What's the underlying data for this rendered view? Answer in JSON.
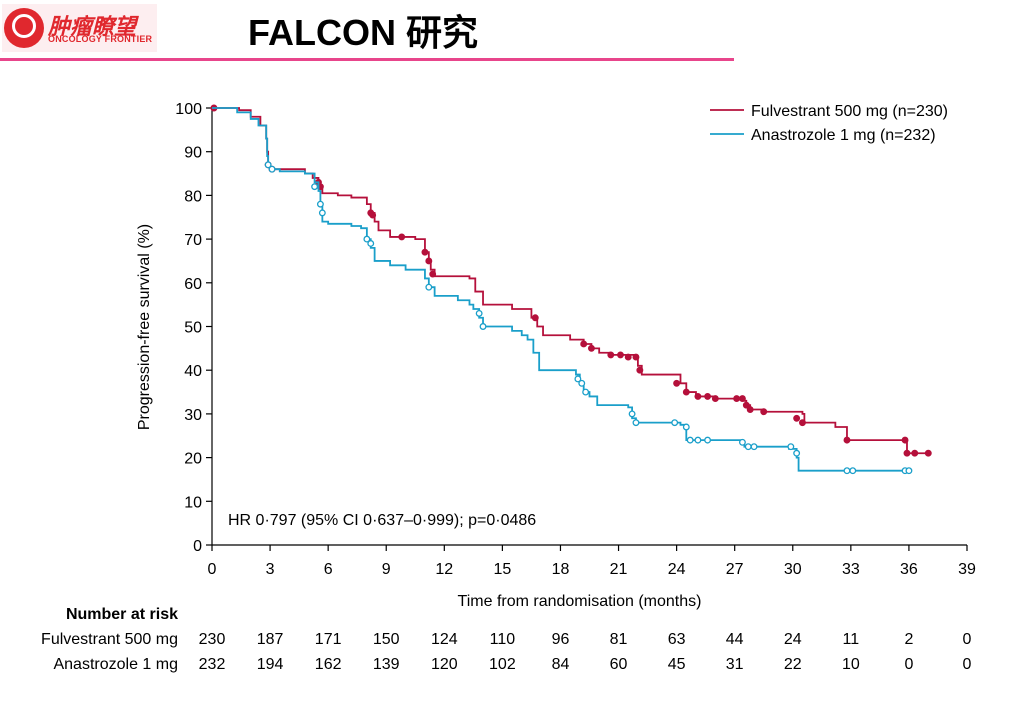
{
  "header": {
    "title": "FALCON 研究",
    "logo_cn": "肿瘤瞭望",
    "logo_en": "ONCOLOGY FRONTIER"
  },
  "colors": {
    "fulvestrant": "#b5103b",
    "anastrozole": "#1a9fca",
    "accent": "#e8458b"
  },
  "chart_data": {
    "type": "line",
    "xlabel": "Time from randomisation (months)",
    "ylabel": "Progression-free survival (%)",
    "xlim": [
      0,
      39
    ],
    "ylim": [
      0,
      100
    ],
    "xticks": [
      0,
      3,
      6,
      9,
      12,
      15,
      18,
      21,
      24,
      27,
      30,
      33,
      36,
      39
    ],
    "yticks": [
      0,
      10,
      20,
      30,
      40,
      50,
      60,
      70,
      80,
      90,
      100
    ],
    "grid": false,
    "legend_position": "top-right",
    "annotation": "HR 0·797 (95% CI 0·637–0·999); p=0·0486",
    "series": [
      {
        "name": "Fulvestrant 500 mg (n=230)",
        "color": "#b5103b",
        "step_points": [
          [
            0,
            100
          ],
          [
            1.4,
            99.5
          ],
          [
            2.0,
            98
          ],
          [
            2.5,
            96
          ],
          [
            2.8,
            93
          ],
          [
            2.85,
            90
          ],
          [
            2.9,
            87
          ],
          [
            3.0,
            86
          ],
          [
            4.8,
            85
          ],
          [
            5.2,
            84
          ],
          [
            5.5,
            83
          ],
          [
            5.6,
            82
          ],
          [
            5.7,
            80.5
          ],
          [
            6.5,
            80
          ],
          [
            7.2,
            79.5
          ],
          [
            8.0,
            78
          ],
          [
            8.2,
            76
          ],
          [
            8.4,
            74
          ],
          [
            8.6,
            72
          ],
          [
            9.2,
            70.5
          ],
          [
            10.5,
            70
          ],
          [
            11.0,
            67
          ],
          [
            11.2,
            65
          ],
          [
            11.3,
            63
          ],
          [
            11.5,
            61.5
          ],
          [
            13.3,
            61
          ],
          [
            13.6,
            58
          ],
          [
            14.0,
            55
          ],
          [
            15.5,
            54
          ],
          [
            16.5,
            52
          ],
          [
            16.8,
            50
          ],
          [
            17.1,
            48
          ],
          [
            18.5,
            47
          ],
          [
            19.2,
            46
          ],
          [
            19.6,
            45
          ],
          [
            20.0,
            44
          ],
          [
            20.5,
            43.5
          ],
          [
            21.8,
            43
          ],
          [
            22.0,
            41
          ],
          [
            22.2,
            39
          ],
          [
            24.2,
            37
          ],
          [
            24.5,
            35
          ],
          [
            25.0,
            34
          ],
          [
            26.0,
            33.5
          ],
          [
            27.5,
            33
          ],
          [
            27.6,
            32
          ],
          [
            27.8,
            31
          ],
          [
            28.5,
            30.5
          ],
          [
            30.5,
            30
          ],
          [
            30.6,
            28
          ],
          [
            32.2,
            27
          ],
          [
            32.8,
            24
          ],
          [
            35.8,
            23.5
          ],
          [
            35.9,
            21
          ],
          [
            37.0,
            21
          ]
        ],
        "censor_points": [
          [
            0.1,
            100
          ],
          [
            2.9,
            87
          ],
          [
            3.1,
            86
          ],
          [
            5.5,
            83
          ],
          [
            5.6,
            82
          ],
          [
            8.2,
            76
          ],
          [
            8.3,
            75.5
          ],
          [
            9.8,
            70.5
          ],
          [
            11.0,
            67
          ],
          [
            11.2,
            65
          ],
          [
            11.4,
            62
          ],
          [
            16.7,
            52
          ],
          [
            19.2,
            46
          ],
          [
            19.6,
            45
          ],
          [
            20.6,
            43.5
          ],
          [
            21.1,
            43.5
          ],
          [
            21.5,
            43
          ],
          [
            21.9,
            43
          ],
          [
            22.1,
            40
          ],
          [
            24.0,
            37
          ],
          [
            24.5,
            35
          ],
          [
            25.1,
            34
          ],
          [
            25.6,
            34
          ],
          [
            26.0,
            33.5
          ],
          [
            27.1,
            33.5
          ],
          [
            27.4,
            33.5
          ],
          [
            27.6,
            32
          ],
          [
            27.8,
            31
          ],
          [
            28.5,
            30.5
          ],
          [
            30.2,
            29
          ],
          [
            30.5,
            28
          ],
          [
            32.8,
            24
          ],
          [
            35.8,
            24
          ],
          [
            35.9,
            21
          ],
          [
            36.3,
            21
          ],
          [
            37.0,
            21
          ]
        ]
      },
      {
        "name": "Anastrozole 1 mg (n=232)",
        "color": "#1a9fca",
        "step_points": [
          [
            0,
            100
          ],
          [
            1.3,
            99
          ],
          [
            2.0,
            97.5
          ],
          [
            2.4,
            96
          ],
          [
            2.8,
            93
          ],
          [
            2.85,
            89
          ],
          [
            2.9,
            87
          ],
          [
            3.0,
            86
          ],
          [
            3.5,
            85.5
          ],
          [
            4.8,
            85
          ],
          [
            5.3,
            83
          ],
          [
            5.5,
            81
          ],
          [
            5.6,
            78
          ],
          [
            5.7,
            74
          ],
          [
            6.0,
            73.5
          ],
          [
            7.2,
            73
          ],
          [
            7.7,
            72.5
          ],
          [
            8.0,
            70
          ],
          [
            8.2,
            68
          ],
          [
            8.4,
            65
          ],
          [
            9.2,
            64
          ],
          [
            10.0,
            63
          ],
          [
            11.0,
            61
          ],
          [
            11.2,
            59
          ],
          [
            11.5,
            57
          ],
          [
            12.7,
            56
          ],
          [
            13.3,
            55
          ],
          [
            13.5,
            54
          ],
          [
            13.8,
            52
          ],
          [
            14.0,
            50
          ],
          [
            15.5,
            49
          ],
          [
            16.0,
            48
          ],
          [
            16.3,
            47
          ],
          [
            16.6,
            44
          ],
          [
            16.9,
            40
          ],
          [
            18.8,
            39
          ],
          [
            19.0,
            37
          ],
          [
            19.2,
            35
          ],
          [
            19.5,
            34
          ],
          [
            19.9,
            32
          ],
          [
            21.5,
            31.5
          ],
          [
            21.7,
            29
          ],
          [
            21.9,
            28
          ],
          [
            24.2,
            27.5
          ],
          [
            24.5,
            24
          ],
          [
            27.3,
            23.5
          ],
          [
            27.5,
            22.5
          ],
          [
            29.8,
            22
          ],
          [
            30.2,
            20
          ],
          [
            30.3,
            17
          ],
          [
            36.0,
            17
          ]
        ],
        "censor_points": [
          [
            2.9,
            87
          ],
          [
            3.1,
            86
          ],
          [
            5.3,
            82
          ],
          [
            5.6,
            78
          ],
          [
            5.7,
            76
          ],
          [
            8.0,
            70
          ],
          [
            8.2,
            69
          ],
          [
            11.2,
            59
          ],
          [
            13.8,
            53
          ],
          [
            14.0,
            50
          ],
          [
            18.9,
            38
          ],
          [
            19.1,
            37
          ],
          [
            19.3,
            35
          ],
          [
            21.7,
            30
          ],
          [
            21.9,
            28
          ],
          [
            23.9,
            28
          ],
          [
            24.5,
            27
          ],
          [
            24.7,
            24
          ],
          [
            25.1,
            24
          ],
          [
            25.6,
            24
          ],
          [
            27.4,
            23.5
          ],
          [
            27.7,
            22.5
          ],
          [
            28.0,
            22.5
          ],
          [
            29.9,
            22.5
          ],
          [
            30.2,
            21
          ],
          [
            32.8,
            17
          ],
          [
            33.1,
            17
          ],
          [
            35.8,
            17
          ],
          [
            36.0,
            17
          ]
        ]
      }
    ]
  },
  "risk_table": {
    "title": "Number at risk",
    "times": [
      0,
      3,
      6,
      9,
      12,
      15,
      18,
      21,
      24,
      27,
      30,
      33,
      36,
      39
    ],
    "rows": [
      {
        "label": "Fulvestrant 500 mg",
        "values": [
          "230",
          "187",
          "171",
          "150",
          "124",
          "110",
          "96",
          "81",
          "63",
          "44",
          "24",
          "11",
          "2",
          "0"
        ]
      },
      {
        "label": "Anastrozole 1 mg",
        "values": [
          "232",
          "194",
          "162",
          "139",
          "120",
          "102",
          "84",
          "60",
          "45",
          "31",
          "22",
          "10",
          "0",
          "0"
        ]
      }
    ]
  }
}
